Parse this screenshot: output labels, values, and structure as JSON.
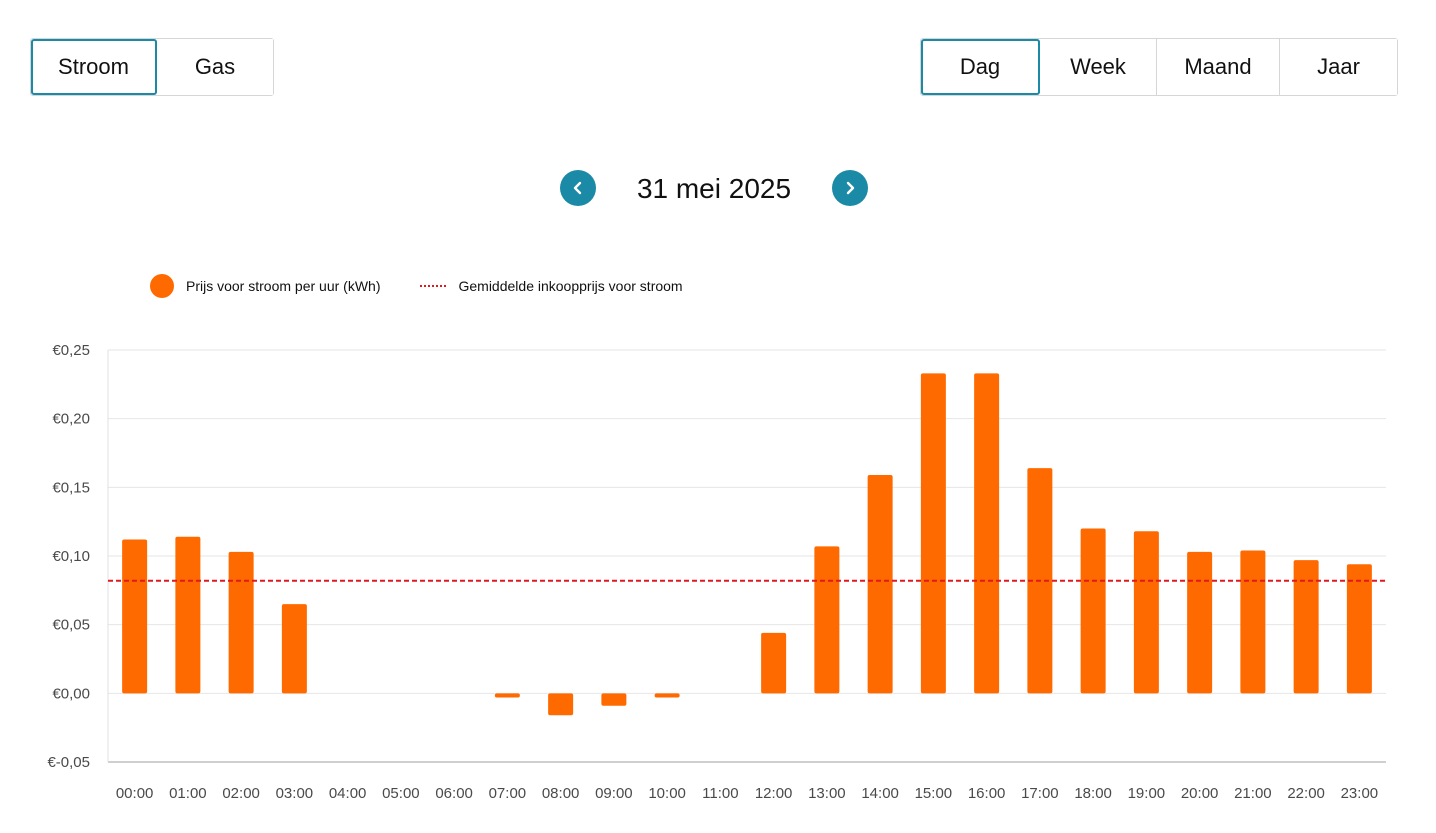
{
  "energy_tabs": [
    {
      "label": "Stroom",
      "active": true
    },
    {
      "label": "Gas",
      "active": false
    }
  ],
  "period_tabs": [
    {
      "label": "Dag",
      "active": true
    },
    {
      "label": "Week",
      "active": false
    },
    {
      "label": "Maand",
      "active": false
    },
    {
      "label": "Jaar",
      "active": false
    }
  ],
  "date_nav": {
    "date": "31 mei 2025",
    "prev_icon": "chevron-left-icon",
    "next_icon": "chevron-right-icon"
  },
  "legend": {
    "bars": "Prijs voor stroom per uur (kWh)",
    "line": "Gemiddelde inkoopprijs voor stroom"
  },
  "colors": {
    "accent": "#1a8aa6",
    "bar": "#ff6a00",
    "average_line": "#e0191f"
  },
  "chart_data": {
    "type": "bar",
    "categories": [
      "00:00",
      "01:00",
      "02:00",
      "03:00",
      "04:00",
      "05:00",
      "06:00",
      "07:00",
      "08:00",
      "09:00",
      "10:00",
      "11:00",
      "12:00",
      "13:00",
      "14:00",
      "15:00",
      "16:00",
      "17:00",
      "18:00",
      "19:00",
      "20:00",
      "21:00",
      "22:00",
      "23:00"
    ],
    "series": [
      {
        "name": "Prijs voor stroom per uur (kWh)",
        "values": [
          0.112,
          0.114,
          0.103,
          0.065,
          0.0,
          0.0,
          0.0,
          -0.003,
          -0.016,
          -0.009,
          -0.003,
          0.0,
          0.044,
          0.107,
          0.159,
          0.233,
          0.233,
          0.164,
          0.12,
          0.118,
          0.103,
          0.104,
          0.097,
          0.094
        ]
      }
    ],
    "average_line": {
      "name": "Gemiddelde inkoopprijs voor stroom",
      "value": 0.082
    },
    "ylim": [
      -0.05,
      0.25
    ],
    "y_ticks": [
      "€0,25",
      "€0,20",
      "€0,15",
      "€0,10",
      "€0,05",
      "€0,00",
      "€-0,05"
    ],
    "y_tick_values": [
      0.25,
      0.2,
      0.15,
      0.1,
      0.05,
      0.0,
      -0.05
    ],
    "grid": true
  }
}
